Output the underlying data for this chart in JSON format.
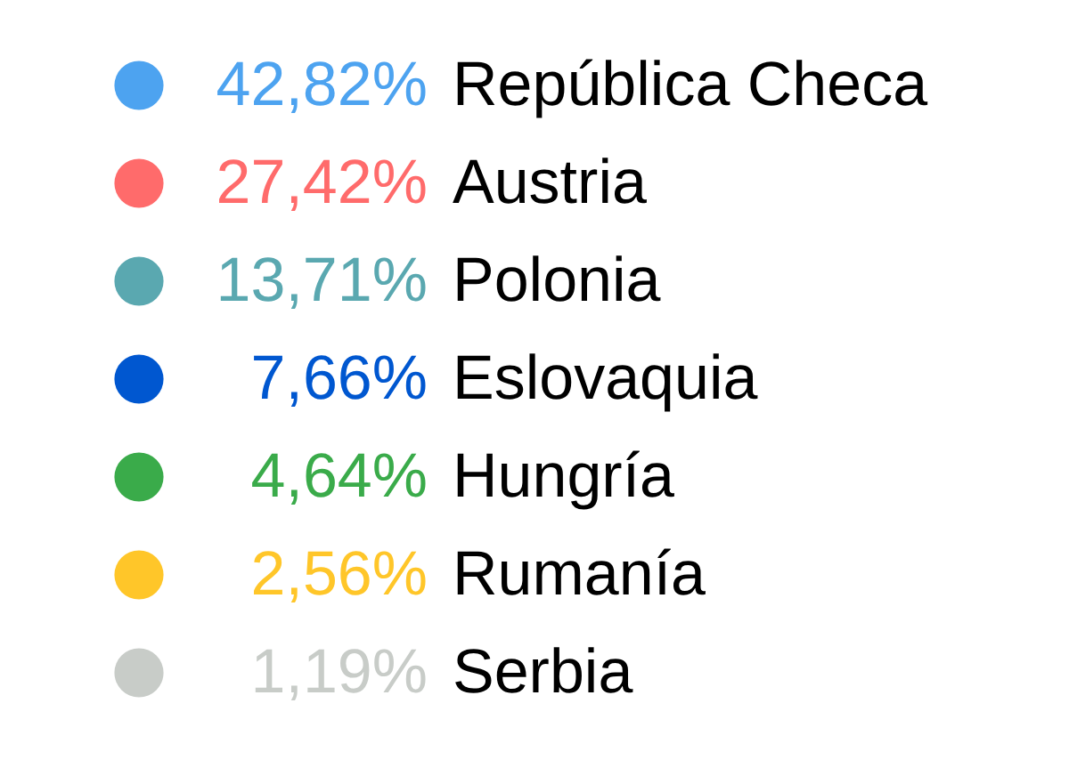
{
  "chart_data": {
    "type": "other",
    "categories": [
      "República Checa",
      "Austria",
      "Polonia",
      "Eslovaquia",
      "Hungría",
      "Rumanía",
      "Serbia"
    ],
    "values": [
      42.82,
      27.42,
      13.71,
      7.66,
      4.64,
      2.56,
      1.19
    ],
    "value_labels": [
      "42,82%",
      "27,42%",
      "13,71%",
      "7,66%",
      "4,64%",
      "2,56%",
      "1,19%"
    ],
    "colors": [
      "#4da3f0",
      "#ff6b6b",
      "#5aa8b0",
      "#0057d0",
      "#3aab4a",
      "#ffc629",
      "#c8ccc8"
    ]
  }
}
